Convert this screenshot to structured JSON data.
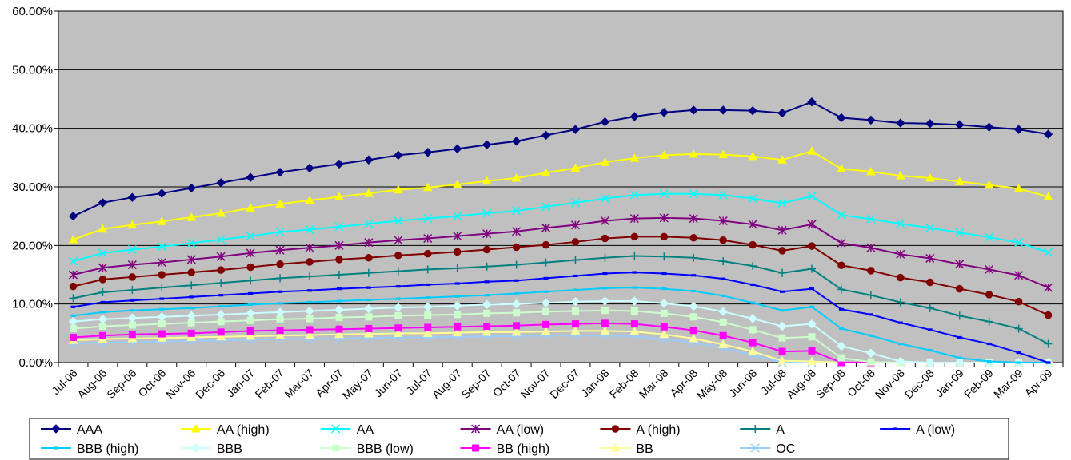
{
  "chart_data": {
    "type": "line",
    "title": "",
    "xlabel": "",
    "ylabel": "",
    "ylim": [
      0,
      60
    ],
    "y_ticks": [
      "0.00%",
      "10.00%",
      "20.00%",
      "30.00%",
      "40.00%",
      "50.00%",
      "60.00%"
    ],
    "grid": "horizontal",
    "plot_background": "#C0C0C0",
    "legend_position": "bottom",
    "categories": [
      "Jul-06",
      "Aug-06",
      "Sep-06",
      "Oct-06",
      "Nov-06",
      "Dec-06",
      "Jan-07",
      "Feb-07",
      "Mar-07",
      "Apr-07",
      "May-07",
      "Jun-07",
      "Jul-07",
      "Aug-07",
      "Sep-07",
      "Oct-07",
      "Nov-07",
      "Dec-07",
      "Jan-08",
      "Feb-08",
      "Mar-08",
      "Apr-08",
      "May-08",
      "Jun-08",
      "Jul-08",
      "Aug-08",
      "Sep-08",
      "Oct-08",
      "Nov-08",
      "Dec-08",
      "Jan-09",
      "Feb-09",
      "Mar-09",
      "Apr-09"
    ],
    "series": [
      {
        "name": "AAA",
        "color": "#000080",
        "marker": "diamond",
        "values": [
          25.0,
          27.3,
          28.2,
          28.9,
          29.8,
          30.7,
          31.6,
          32.5,
          33.2,
          33.9,
          34.6,
          35.4,
          35.9,
          36.5,
          37.2,
          37.8,
          38.8,
          39.8,
          41.1,
          42.0,
          42.7,
          43.1,
          43.1,
          43.0,
          42.6,
          44.5,
          41.8,
          41.4,
          40.9,
          40.8,
          40.6,
          40.2,
          39.8,
          39.0
        ]
      },
      {
        "name": "AA (high)",
        "color": "#FFFF00",
        "marker": "triangle",
        "values": [
          21.0,
          22.8,
          23.5,
          24.1,
          24.8,
          25.5,
          26.4,
          27.1,
          27.7,
          28.3,
          28.9,
          29.5,
          29.9,
          30.4,
          31.0,
          31.5,
          32.4,
          33.2,
          34.2,
          34.9,
          35.4,
          35.6,
          35.5,
          35.2,
          34.6,
          36.1,
          33.1,
          32.6,
          31.9,
          31.5,
          30.9,
          30.3,
          29.7,
          28.3
        ]
      },
      {
        "name": "AA",
        "color": "#00FFFF",
        "marker": "x",
        "values": [
          17.3,
          18.7,
          19.3,
          19.8,
          20.4,
          21.0,
          21.6,
          22.3,
          22.7,
          23.2,
          23.7,
          24.2,
          24.6,
          25.0,
          25.5,
          25.9,
          26.6,
          27.3,
          28.0,
          28.6,
          28.8,
          28.8,
          28.6,
          28.0,
          27.2,
          28.4,
          25.2,
          24.5,
          23.7,
          23.0,
          22.2,
          21.4,
          20.5,
          18.8
        ]
      },
      {
        "name": "AA (low)",
        "color": "#800080",
        "marker": "star",
        "values": [
          15.0,
          16.2,
          16.7,
          17.1,
          17.6,
          18.1,
          18.7,
          19.2,
          19.6,
          20.0,
          20.5,
          20.9,
          21.2,
          21.6,
          22.0,
          22.4,
          23.0,
          23.5,
          24.2,
          24.6,
          24.7,
          24.6,
          24.2,
          23.6,
          22.6,
          23.6,
          20.4,
          19.6,
          18.5,
          17.8,
          16.8,
          15.9,
          14.9,
          12.8
        ]
      },
      {
        "name": "A (high)",
        "color": "#800000",
        "marker": "circle",
        "values": [
          13.0,
          14.2,
          14.6,
          15.0,
          15.4,
          15.8,
          16.3,
          16.8,
          17.2,
          17.6,
          17.9,
          18.3,
          18.6,
          18.9,
          19.3,
          19.7,
          20.1,
          20.6,
          21.2,
          21.5,
          21.5,
          21.3,
          20.9,
          20.1,
          19.1,
          19.9,
          16.6,
          15.7,
          14.5,
          13.7,
          12.6,
          11.6,
          10.4,
          8.1
        ]
      },
      {
        "name": "A",
        "color": "#008080",
        "marker": "plus",
        "values": [
          11.0,
          12.0,
          12.4,
          12.8,
          13.2,
          13.6,
          14.0,
          14.4,
          14.7,
          15.0,
          15.3,
          15.6,
          15.9,
          16.1,
          16.4,
          16.7,
          17.1,
          17.5,
          17.9,
          18.2,
          18.1,
          17.9,
          17.3,
          16.5,
          15.3,
          16.0,
          12.5,
          11.5,
          10.3,
          9.3,
          8.0,
          7.0,
          5.8,
          3.2
        ]
      },
      {
        "name": "A (low)",
        "color": "#0000FF",
        "marker": "dash",
        "values": [
          9.5,
          10.3,
          10.6,
          10.9,
          11.2,
          11.5,
          11.8,
          12.1,
          12.3,
          12.6,
          12.8,
          13.0,
          13.3,
          13.5,
          13.8,
          14.0,
          14.4,
          14.8,
          15.2,
          15.4,
          15.2,
          14.9,
          14.3,
          13.3,
          12.1,
          12.6,
          9.1,
          8.2,
          6.8,
          5.6,
          4.3,
          3.2,
          1.7,
          0.0
        ]
      },
      {
        "name": "BBB (high)",
        "color": "#00CCFF",
        "marker": "dash",
        "values": [
          8.0,
          8.6,
          8.9,
          9.1,
          9.3,
          9.6,
          9.9,
          10.1,
          10.3,
          10.5,
          10.7,
          10.9,
          11.1,
          11.3,
          11.5,
          11.8,
          12.1,
          12.4,
          12.7,
          12.8,
          12.6,
          12.2,
          11.4,
          10.2,
          8.9,
          9.5,
          5.8,
          4.6,
          3.2,
          2.1,
          0.8,
          0.2,
          0.0,
          0.0
        ]
      },
      {
        "name": "BBB",
        "color": "#CCFFFF",
        "marker": "diamond",
        "values": [
          7.0,
          7.4,
          7.6,
          7.8,
          8.0,
          8.2,
          8.4,
          8.6,
          8.8,
          9.0,
          9.2,
          9.4,
          9.5,
          9.7,
          9.9,
          10.0,
          10.2,
          10.4,
          10.5,
          10.5,
          10.1,
          9.6,
          8.7,
          7.5,
          6.2,
          6.6,
          2.8,
          1.6,
          0.2,
          0.0,
          0.0,
          0.0,
          0.0,
          0.0
        ]
      },
      {
        "name": "BBB (low)",
        "color": "#CCFFCC",
        "marker": "square",
        "values": [
          5.8,
          6.2,
          6.4,
          6.6,
          6.8,
          7.0,
          7.2,
          7.4,
          7.5,
          7.7,
          7.8,
          8.0,
          8.1,
          8.2,
          8.4,
          8.5,
          8.7,
          8.8,
          8.9,
          8.8,
          8.4,
          7.8,
          6.9,
          5.6,
          4.2,
          4.4,
          0.8,
          0.1,
          0.0,
          0.0,
          0.0,
          0.0,
          0.0,
          0.0
        ]
      },
      {
        "name": "BB (high)",
        "color": "#FF00FF",
        "marker": "square",
        "values": [
          4.3,
          4.6,
          4.8,
          4.9,
          5.0,
          5.2,
          5.4,
          5.5,
          5.6,
          5.7,
          5.8,
          5.9,
          6.0,
          6.1,
          6.2,
          6.3,
          6.5,
          6.6,
          6.7,
          6.6,
          6.1,
          5.5,
          4.6,
          3.4,
          1.9,
          2.0,
          0.0,
          0.0,
          0.0,
          0.0,
          0.0,
          0.0,
          0.0,
          0.0
        ]
      },
      {
        "name": "BB",
        "color": "#FFFF99",
        "marker": "triangle",
        "values": [
          3.8,
          4.0,
          4.1,
          4.2,
          4.3,
          4.4,
          4.5,
          4.6,
          4.7,
          4.8,
          4.9,
          5.0,
          5.0,
          5.1,
          5.2,
          5.2,
          5.3,
          5.4,
          5.4,
          5.3,
          4.8,
          4.1,
          3.1,
          1.9,
          0.3,
          0.2,
          0.0,
          0.0,
          0.0,
          0.0,
          0.0,
          0.0,
          0.0,
          0.0
        ]
      },
      {
        "name": "OC",
        "color": "#99CCFF",
        "marker": "x",
        "values": [
          3.2,
          3.4,
          3.5,
          3.6,
          3.7,
          3.8,
          3.9,
          4.0,
          4.0,
          4.1,
          4.2,
          4.3,
          4.3,
          4.4,
          4.5,
          4.5,
          4.6,
          4.6,
          4.6,
          4.5,
          4.0,
          3.4,
          2.5,
          1.3,
          0.0,
          0.0,
          0.0,
          0.0,
          0.0,
          0.0,
          0.0,
          0.0,
          0.0,
          0.0
        ]
      }
    ]
  }
}
